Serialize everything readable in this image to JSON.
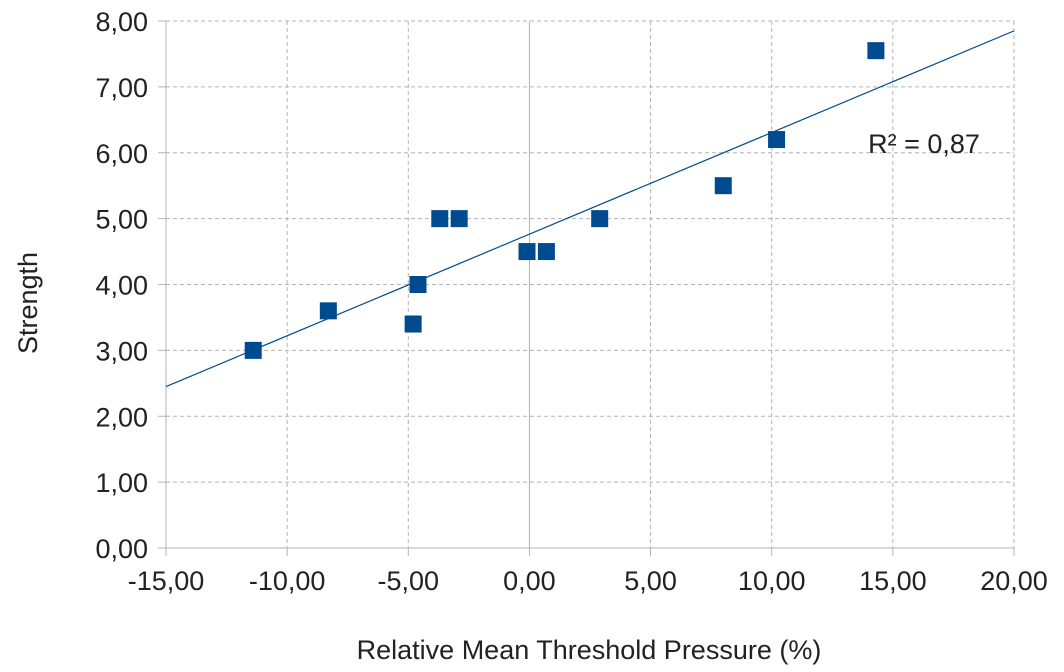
{
  "chart_data": {
    "type": "scatter",
    "title": "",
    "xlabel": "Relative Mean Threshold Pressure (%)",
    "ylabel": "Strength",
    "xlim": [
      -15,
      20
    ],
    "ylim": [
      0,
      8
    ],
    "x_ticks": [
      -15,
      -10,
      -5,
      0,
      5,
      10,
      15,
      20
    ],
    "y_ticks": [
      0,
      1,
      2,
      3,
      4,
      5,
      6,
      7,
      8
    ],
    "x_tick_labels": [
      "-15,00",
      "-10,00",
      "-5,00",
      "0,00",
      "5,00",
      "10,00",
      "15,00",
      "20,00"
    ],
    "y_tick_labels": [
      "0,00",
      "1,00",
      "2,00",
      "3,00",
      "4,00",
      "5,00",
      "6,00",
      "7,00",
      "8,00"
    ],
    "grid": true,
    "legend": false,
    "series": [
      {
        "marker": "square",
        "color": "#004a8f",
        "points": [
          {
            "x": -11.4,
            "y": 3.0
          },
          {
            "x": -8.3,
            "y": 3.6
          },
          {
            "x": -4.8,
            "y": 3.4
          },
          {
            "x": -4.6,
            "y": 4.0
          },
          {
            "x": -3.7,
            "y": 5.0
          },
          {
            "x": -2.9,
            "y": 5.0
          },
          {
            "x": -0.1,
            "y": 4.5
          },
          {
            "x": 0.7,
            "y": 4.5
          },
          {
            "x": 2.9,
            "y": 5.0
          },
          {
            "x": 8.0,
            "y": 5.5
          },
          {
            "x": 10.2,
            "y": 6.2
          },
          {
            "x": 14.3,
            "y": 7.55
          }
        ]
      }
    ],
    "trendline": {
      "type": "linear",
      "color": "#004a8f",
      "x_start": -15,
      "y_start": 2.45,
      "x_end": 20,
      "y_end": 7.85
    },
    "annotation": {
      "text": "R² = 0,87"
    }
  }
}
